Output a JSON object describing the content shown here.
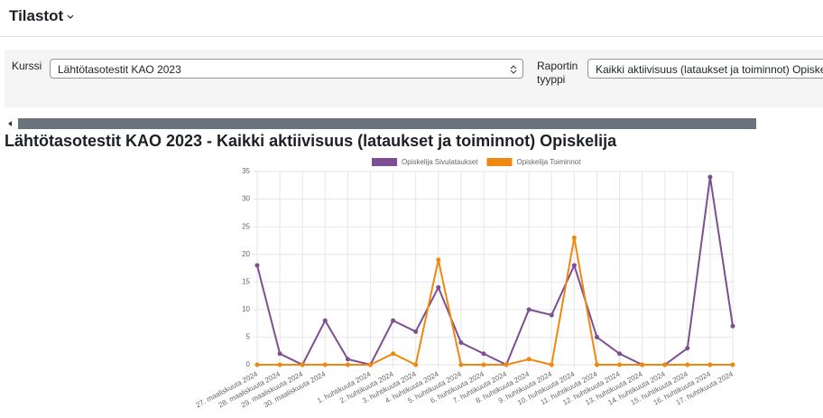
{
  "header": {
    "title": "Tilastot"
  },
  "form": {
    "course_label": "Kurssi",
    "course_value": "Lähtötasotestit KAO 2023",
    "report_label": "Raportin tyyppi",
    "report_value": "Kaikki aktiivisuus (lataukset ja toiminnot) Opiskelija"
  },
  "chart_data": {
    "type": "line",
    "title": "Lähtötasotestit KAO 2023 - Kaikki aktiivisuus (lataukset ja toiminnot) Opiskelija",
    "categories": [
      "27. maaliskuuta 2024",
      "28. maaliskuuta 2024",
      "29. maaliskuuta 2024",
      "30. maaliskuuta 2024",
      null,
      "1. huhtikuuta 2024",
      "2. huhtikuuta 2024",
      "3. huhtikuuta 2024",
      "4. huhtikuuta 2024",
      "5. huhtikuuta 2024",
      "6. huhtikuuta 2024",
      "7. huhtikuuta 2024",
      "8. huhtikuuta 2024",
      "9. huhtikuuta 2024",
      "10. huhtikuuta 2024",
      "11. huhtikuuta 2024",
      "12. huhtikuuta 2024",
      "13. huhtikuuta 2024",
      "14. huhtikuuta 2024",
      "15. huhtikuuta 2024",
      "16. huhtikuuta 2024",
      "17. huhtikuuta 2024"
    ],
    "series": [
      {
        "name": "Opiskelija Sivulataukset",
        "color": "#7e4e94",
        "values": [
          18,
          2,
          0,
          8,
          1,
          0,
          8,
          6,
          14,
          4,
          2,
          0,
          10,
          9,
          18,
          5,
          2,
          0,
          0,
          3,
          34,
          7
        ]
      },
      {
        "name": "Opiskelija Toiminnot",
        "color": "#f0870e",
        "values": [
          0,
          0,
          0,
          0,
          0,
          0,
          2,
          0,
          19,
          0,
          0,
          0,
          1,
          0,
          23,
          0,
          0,
          0,
          0,
          0,
          0,
          0
        ]
      }
    ],
    "ylim": [
      0,
      35
    ],
    "yticks": [
      0,
      5,
      10,
      15,
      20,
      25,
      30,
      35
    ],
    "grid": true
  }
}
